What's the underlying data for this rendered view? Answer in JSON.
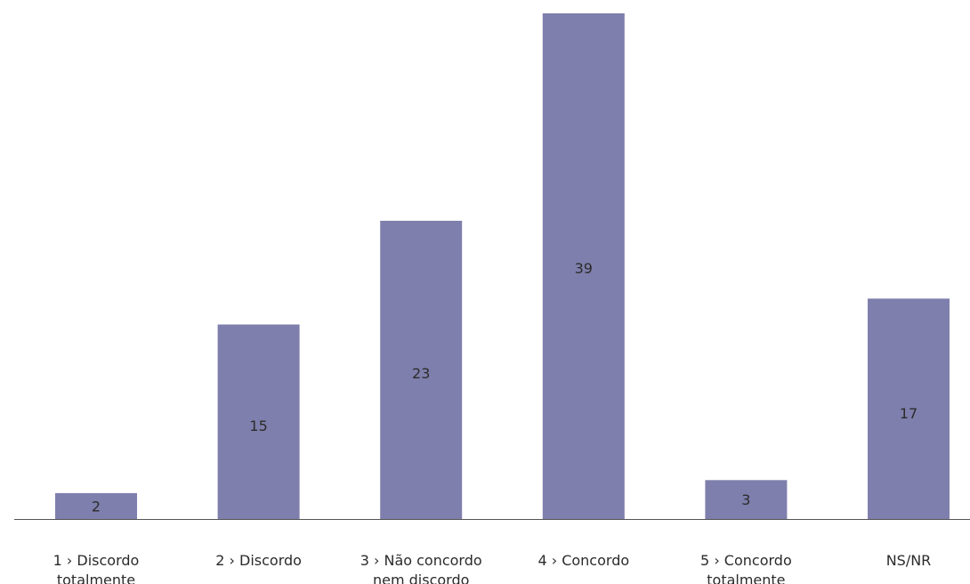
{
  "chart_data": {
    "type": "bar",
    "categories": [
      [
        "1 › Discordo",
        "totalmente"
      ],
      [
        "2 › Discordo"
      ],
      [
        "3 › Não concordo",
        "nem discordo"
      ],
      [
        "4 › Concordo"
      ],
      [
        "5 › Concordo",
        "totalmente"
      ],
      [
        "NS/NR"
      ]
    ],
    "values": [
      2,
      15,
      23,
      39,
      3,
      17
    ],
    "title": "",
    "xlabel": "",
    "ylabel": "",
    "ylim": [
      0,
      39
    ],
    "grid": false,
    "legend": "none",
    "data_labels": true
  },
  "colors": {
    "bar": "#7f7fad",
    "axis": "#555555",
    "text": "#2b2b2b"
  }
}
